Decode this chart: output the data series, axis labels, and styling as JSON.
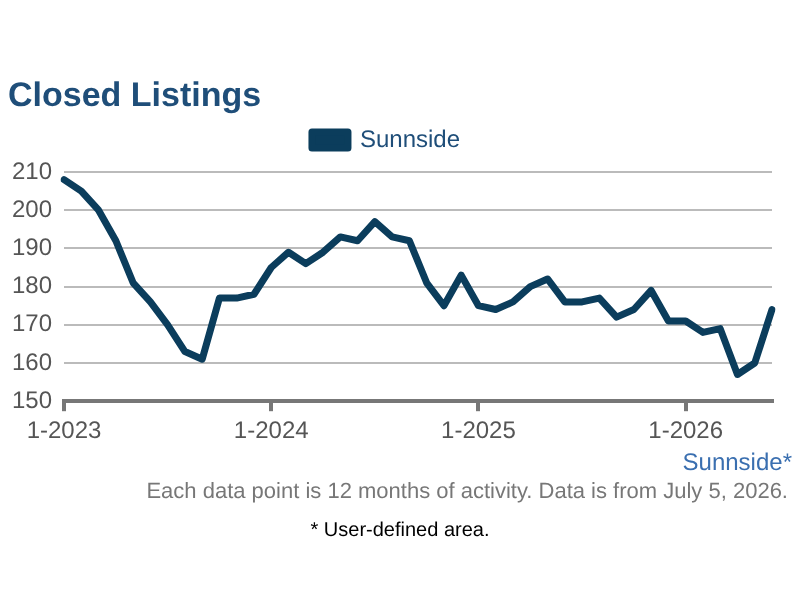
{
  "chart_data": {
    "type": "line",
    "title": "Closed Listings",
    "categories": [
      "1-2023",
      null,
      null,
      null,
      null,
      null,
      null,
      null,
      null,
      null,
      null,
      null,
      "1-2024",
      null,
      null,
      null,
      null,
      null,
      null,
      null,
      null,
      null,
      null,
      null,
      "1-2025",
      null,
      null,
      null,
      null,
      null,
      null,
      null,
      null,
      null,
      null,
      null,
      "1-2026",
      null,
      null,
      null,
      null,
      null
    ],
    "series": [
      {
        "name": "Sunnside",
        "color": "#0b3d5c",
        "values": [
          208,
          205,
          200,
          192,
          181,
          176,
          170,
          163,
          161,
          177,
          177,
          178,
          185,
          189,
          186,
          189,
          193,
          192,
          197,
          193,
          192,
          181,
          175,
          183,
          175,
          174,
          176,
          180,
          182,
          176,
          176,
          177,
          172,
          174,
          179,
          171,
          171,
          168,
          169,
          157,
          160,
          174
        ]
      }
    ],
    "ylim": [
      150,
      210
    ],
    "yticks": [
      150,
      160,
      170,
      180,
      190,
      200,
      210
    ],
    "grid": "y",
    "legend": "top",
    "marker": "none",
    "line_style": "solid",
    "annotations": [
      "Sunnside*",
      "Each data point is 12 months of activity. Data is from July 5, 2026.",
      "* User-defined area."
    ]
  }
}
